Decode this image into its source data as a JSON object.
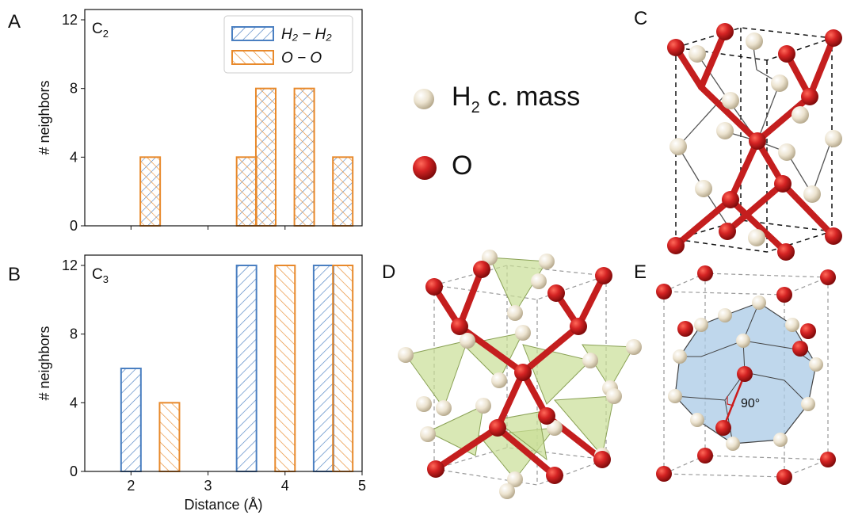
{
  "panel_letters": {
    "a": "A",
    "b": "B",
    "c": "C",
    "d": "D",
    "e": "E"
  },
  "species_legend": {
    "h2_main": "H",
    "h2_sub": "2",
    "h2_rest": " c. mass",
    "o_label": "O"
  },
  "angle_label": "90°",
  "colors": {
    "h2_series": "#4a7fc1",
    "oo_series": "#e8892b",
    "oxygen_atom": "#cc1b1b",
    "h2_atom": "#ece3cf",
    "polyhedron_green": "#c9de95",
    "polyhedron_blue": "#a9c9e6"
  },
  "chart_data": [
    {
      "type": "bar",
      "panel": "A",
      "annotation": "C",
      "annotation_sub": "2",
      "xlabel": "",
      "ylabel": "# neighbors",
      "xlim": [
        1.4,
        5.0
      ],
      "ylim": [
        0,
        12.6
      ],
      "yticks": [
        "0",
        "4",
        "8",
        "12"
      ],
      "ytick_values": [
        0,
        4,
        8,
        12
      ],
      "xticks_shown": false,
      "legend_position": "top-right",
      "series": [
        {
          "name": "H₂ − H₂",
          "hatch": "backslash",
          "x": [
            2.25,
            3.5,
            3.75,
            4.25,
            4.75
          ],
          "values": [
            4,
            4,
            8,
            8,
            4
          ]
        },
        {
          "name": "O − O",
          "hatch": "slash",
          "x": [
            2.25,
            3.5,
            3.75,
            4.25,
            4.75
          ],
          "values": [
            4,
            4,
            8,
            8,
            4
          ]
        }
      ]
    },
    {
      "type": "bar",
      "panel": "B",
      "annotation": "C",
      "annotation_sub": "3",
      "xlabel": "Distance (Å)",
      "ylabel": "# neighbors",
      "xlim": [
        1.4,
        5.0
      ],
      "ylim": [
        0,
        12.6
      ],
      "yticks": [
        "0",
        "4",
        "8",
        "12"
      ],
      "ytick_values": [
        0,
        4,
        8,
        12
      ],
      "xticks": [
        "2",
        "3",
        "4",
        "5"
      ],
      "xtick_values": [
        2,
        3,
        4,
        5
      ],
      "series": [
        {
          "name": "H₂ − H₂",
          "hatch": "backslash",
          "x": [
            2.0,
            3.5,
            4.5
          ],
          "values": [
            6,
            12,
            12
          ]
        },
        {
          "name": "O − O",
          "hatch": "slash",
          "x": [
            2.5,
            4.0,
            4.75
          ],
          "values": [
            4,
            12,
            12
          ]
        }
      ]
    }
  ]
}
